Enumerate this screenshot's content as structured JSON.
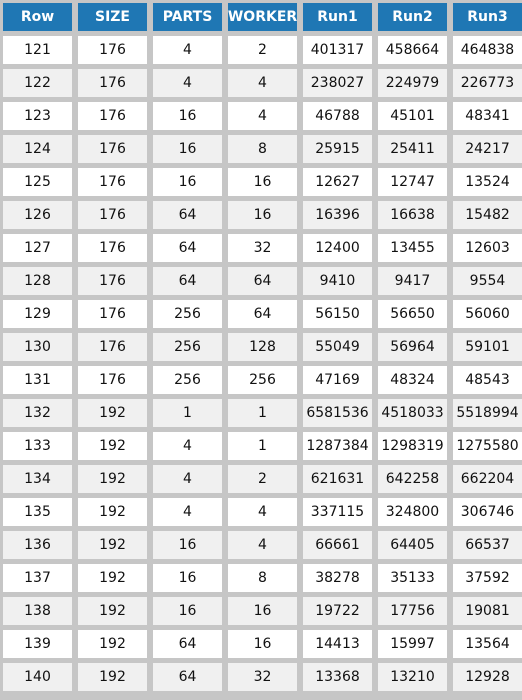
{
  "table": {
    "columns": [
      "Row",
      "SIZE",
      "PARTS",
      "WORKER",
      "Run1",
      "Run2",
      "Run3"
    ],
    "rows": [
      [
        "121",
        "176",
        "4",
        "2",
        "401317",
        "458664",
        "464838"
      ],
      [
        "122",
        "176",
        "4",
        "4",
        "238027",
        "224979",
        "226773"
      ],
      [
        "123",
        "176",
        "16",
        "4",
        "46788",
        "45101",
        "48341"
      ],
      [
        "124",
        "176",
        "16",
        "8",
        "25915",
        "25411",
        "24217"
      ],
      [
        "125",
        "176",
        "16",
        "16",
        "12627",
        "12747",
        "13524"
      ],
      [
        "126",
        "176",
        "64",
        "16",
        "16396",
        "16638",
        "15482"
      ],
      [
        "127",
        "176",
        "64",
        "32",
        "12400",
        "13455",
        "12603"
      ],
      [
        "128",
        "176",
        "64",
        "64",
        "9410",
        "9417",
        "9554"
      ],
      [
        "129",
        "176",
        "256",
        "64",
        "56150",
        "56650",
        "56060"
      ],
      [
        "130",
        "176",
        "256",
        "128",
        "55049",
        "56964",
        "59101"
      ],
      [
        "131",
        "176",
        "256",
        "256",
        "47169",
        "48324",
        "48543"
      ],
      [
        "132",
        "192",
        "1",
        "1",
        "6581536",
        "4518033",
        "5518994"
      ],
      [
        "133",
        "192",
        "4",
        "1",
        "1287384",
        "1298319",
        "1275580"
      ],
      [
        "134",
        "192",
        "4",
        "2",
        "621631",
        "642258",
        "662204"
      ],
      [
        "135",
        "192",
        "4",
        "4",
        "337115",
        "324800",
        "306746"
      ],
      [
        "136",
        "192",
        "16",
        "4",
        "66661",
        "64405",
        "66537"
      ],
      [
        "137",
        "192",
        "16",
        "8",
        "38278",
        "35133",
        "37592"
      ],
      [
        "138",
        "192",
        "16",
        "16",
        "19722",
        "17756",
        "19081"
      ],
      [
        "139",
        "192",
        "64",
        "16",
        "14413",
        "15997",
        "13564"
      ],
      [
        "140",
        "192",
        "64",
        "32",
        "13368",
        "13210",
        "12928"
      ]
    ]
  },
  "colors": {
    "header_bg": "#1f77b4",
    "header_text": "#ffffff",
    "row_odd": "#ffffff",
    "row_even": "#f0f0f0",
    "grid_bg": "#c6c6c6"
  }
}
